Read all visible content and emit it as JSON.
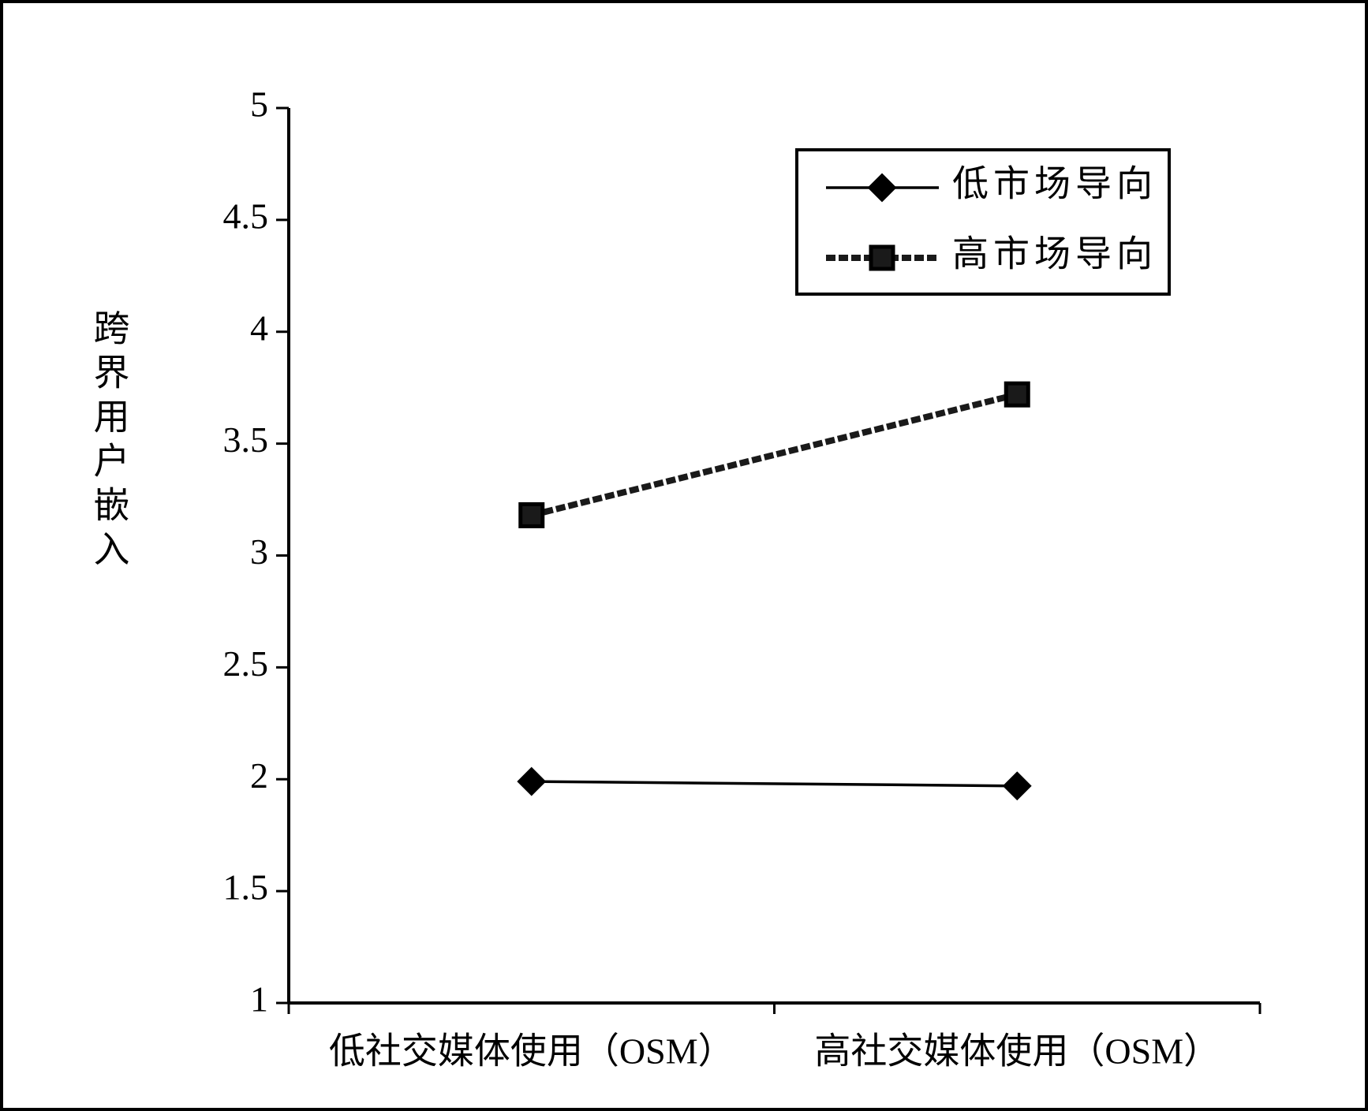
{
  "chart_data": {
    "type": "line",
    "y_label": "跨界用户嵌入",
    "categories": [
      "低社交媒体使用（OSM）",
      "高社交媒体使用（OSM）"
    ],
    "series": [
      {
        "name": "低市场导向",
        "color": "#000000",
        "line_style": "solid",
        "marker": "diamond",
        "values": [
          1.99,
          1.97
        ]
      },
      {
        "name": "高市场导向",
        "color": "#1a1a1a",
        "line_style": "dashed",
        "marker": "square",
        "values": [
          3.18,
          3.72
        ]
      }
    ],
    "ylim": [
      1,
      5
    ],
    "yticks": [
      1,
      1.5,
      2,
      2.5,
      3,
      3.5,
      4,
      4.5,
      5
    ],
    "grid": false,
    "legend": "upper-right"
  }
}
